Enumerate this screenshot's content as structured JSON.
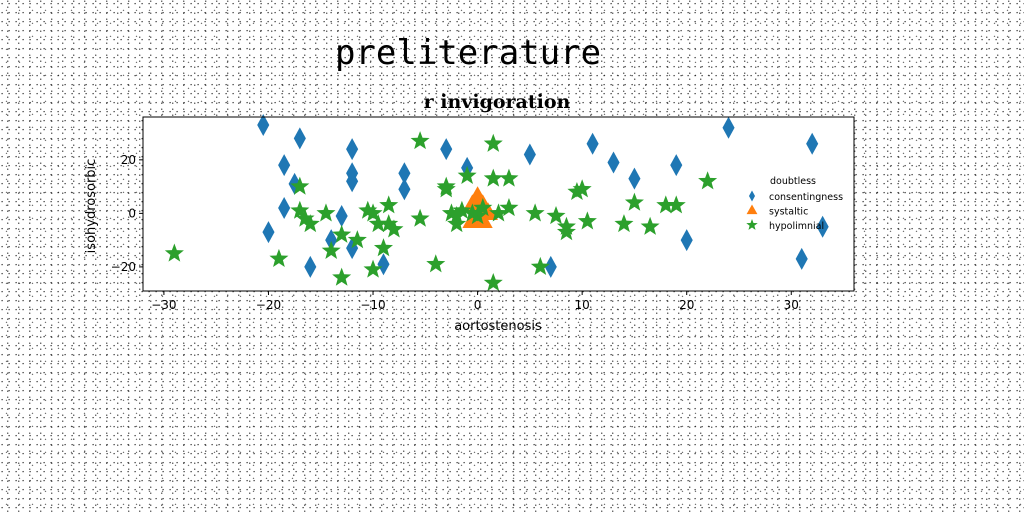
{
  "figure": {
    "suptitle": "preliterature"
  },
  "chart_data": {
    "type": "scatter",
    "title": "r invigoration",
    "xlabel": "aortostenosis",
    "ylabel": "isohydrosorbic",
    "xlim": [
      -32,
      36
    ],
    "ylim": [
      -29,
      36
    ],
    "xticks": [
      -30,
      -20,
      -10,
      0,
      10,
      20,
      30
    ],
    "yticks": [
      -20,
      0,
      20
    ],
    "xtick_labels": [
      "−30",
      "−20",
      "−10",
      "0",
      "10",
      "20",
      "30"
    ],
    "ytick_labels": [
      "−20",
      "0",
      "20"
    ],
    "grid": false,
    "legend": {
      "placement": "right",
      "title": "doubtless",
      "entries": [
        "consentingness",
        "systaltic",
        "hypolimnial"
      ]
    },
    "series": [
      {
        "name": "consentingness",
        "marker": "diamond",
        "color": "#1f77b4",
        "points": [
          [
            -20.5,
            33
          ],
          [
            -18.5,
            18
          ],
          [
            -18.5,
            2
          ],
          [
            -17.5,
            11
          ],
          [
            -17,
            28
          ],
          [
            -20,
            -7
          ],
          [
            -16,
            -20
          ],
          [
            -14,
            -10
          ],
          [
            -13,
            -1
          ],
          [
            -12,
            24
          ],
          [
            -12,
            15
          ],
          [
            -12,
            12
          ],
          [
            -12,
            -13
          ],
          [
            -9,
            -19
          ],
          [
            -7,
            15
          ],
          [
            -7,
            9
          ],
          [
            -3,
            24
          ],
          [
            -1,
            17
          ],
          [
            5,
            22
          ],
          [
            7,
            -20
          ],
          [
            11,
            26
          ],
          [
            13,
            19
          ],
          [
            15,
            13
          ],
          [
            19,
            18
          ],
          [
            20,
            -10
          ],
          [
            24,
            32
          ],
          [
            31,
            -17
          ],
          [
            32,
            26
          ],
          [
            33,
            -5
          ]
        ]
      },
      {
        "name": "systaltic",
        "marker": "triangle",
        "color": "#ff7f0e",
        "points": [
          [
            0,
            6
          ],
          [
            -0.5,
            3
          ],
          [
            0.5,
            3
          ],
          [
            0,
            0
          ],
          [
            -0.5,
            -3
          ],
          [
            0.5,
            -3
          ],
          [
            0,
            -3
          ],
          [
            1,
            0
          ]
        ]
      },
      {
        "name": "hypolimnial",
        "marker": "star",
        "color": "#2ca02c",
        "points": [
          [
            -29,
            -15
          ],
          [
            -19,
            -17
          ],
          [
            -17,
            10
          ],
          [
            -17,
            1
          ],
          [
            -16.5,
            -2
          ],
          [
            -16,
            -4
          ],
          [
            -14.5,
            0
          ],
          [
            -14,
            -14
          ],
          [
            -13,
            -8
          ],
          [
            -13,
            -24
          ],
          [
            -11.5,
            -10
          ],
          [
            -10.5,
            1
          ],
          [
            -10,
            0
          ],
          [
            -10,
            -21
          ],
          [
            -9.5,
            -4
          ],
          [
            -9,
            -13
          ],
          [
            -8.5,
            -4
          ],
          [
            -8.5,
            3
          ],
          [
            -8,
            -6
          ],
          [
            -5.5,
            27
          ],
          [
            -5.5,
            -2
          ],
          [
            -4,
            -19
          ],
          [
            -3,
            10
          ],
          [
            -3,
            9
          ],
          [
            -2.5,
            0
          ],
          [
            -2,
            -1
          ],
          [
            -2,
            -4
          ],
          [
            -1.5,
            1
          ],
          [
            -1,
            14
          ],
          [
            -0.5,
            0
          ],
          [
            0,
            -1
          ],
          [
            0.5,
            2
          ],
          [
            1.5,
            26
          ],
          [
            1.5,
            13
          ],
          [
            2,
            0
          ],
          [
            3,
            2
          ],
          [
            3,
            13
          ],
          [
            1.5,
            -26
          ],
          [
            5.5,
            0
          ],
          [
            6,
            -20
          ],
          [
            7.5,
            -1
          ],
          [
            8.5,
            -5
          ],
          [
            8.5,
            -7
          ],
          [
            9.5,
            8
          ],
          [
            10,
            9
          ],
          [
            10.5,
            -3
          ],
          [
            14,
            -4
          ],
          [
            15,
            4
          ],
          [
            16.5,
            -5
          ],
          [
            18,
            3
          ],
          [
            19,
            3
          ],
          [
            22,
            12
          ]
        ]
      }
    ]
  }
}
